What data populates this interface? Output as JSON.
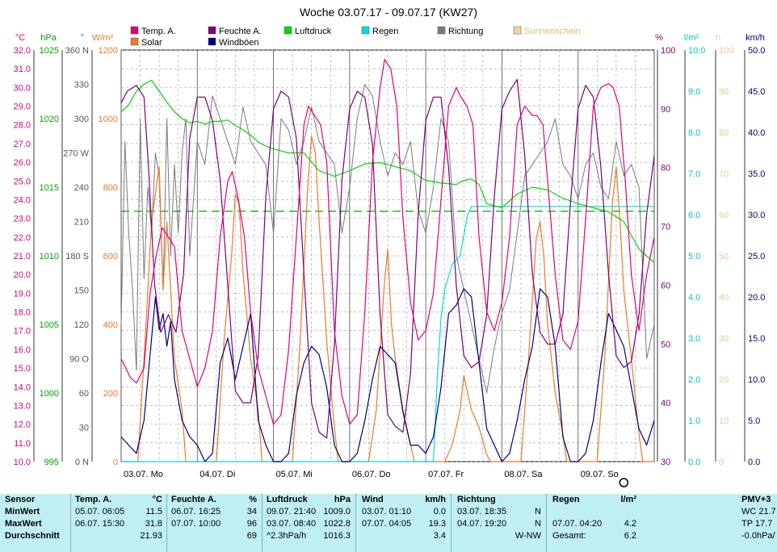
{
  "title": "Woche 03.07.17 - 09.07.17 (KW27)",
  "legend": [
    {
      "label": "Temp. A.",
      "color": "#e0007a",
      "key": "temp"
    },
    {
      "label": "Solar",
      "color": "#f07828",
      "key": "solar"
    },
    {
      "label": "Feuchte A.",
      "color": "#7a007a",
      "key": "humidity"
    },
    {
      "label": "Windböen",
      "color": "#00007a",
      "key": "gusts"
    },
    {
      "label": "Luftdruck",
      "color": "#00dd00",
      "key": "pressure"
    },
    {
      "label": "Regen",
      "color": "#00dddd",
      "key": "rain"
    },
    {
      "label": "Richtung",
      "color": "#7a7a7a",
      "key": "direction"
    },
    {
      "label": "Sonnenschein",
      "color": "#f5d2a0",
      "key": "sunshine"
    }
  ],
  "axes": {
    "temp": {
      "unit": "°C",
      "color": "#e0007a",
      "ticks": [
        "32.0",
        "31.0",
        "30.0",
        "29.0",
        "28.0",
        "27.0",
        "26.0",
        "25.0",
        "24.0",
        "23.0",
        "22.0",
        "21.0",
        "20.0",
        "19.0",
        "18.0",
        "17.0",
        "16.0",
        "15.0",
        "14.0",
        "13.0",
        "12.0",
        "11.0",
        "10.0"
      ]
    },
    "pressure": {
      "unit": "hPa",
      "color": "#00aa00",
      "ticks": [
        "1025",
        "1020",
        "1015",
        "1010",
        "1005",
        "1000",
        "995"
      ]
    },
    "direction": {
      "unit": "°",
      "color": "#555555",
      "ticks": [
        "360 N",
        "330",
        "300",
        "270 W",
        "240",
        "210",
        "180 S",
        "150",
        "120",
        "90 O",
        "60",
        "30",
        "0 N"
      ]
    },
    "solar": {
      "unit": "W/m²",
      "color": "#f07828",
      "ticks": [
        "1200",
        "1000",
        "800",
        "600",
        "400",
        "200",
        "0"
      ]
    },
    "humidity": {
      "unit": "%",
      "color": "#7a007a",
      "ticks": [
        "100",
        "90",
        "80",
        "70",
        "60",
        "50",
        "40",
        "30"
      ]
    },
    "rain": {
      "unit": "l/m²",
      "color": "#00c8c8",
      "ticks": [
        "10.0",
        "9.0",
        "8.0",
        "7.0",
        "6.0",
        "5.0",
        "4.0",
        "3.0",
        "2.0",
        "1.0",
        "0.0"
      ]
    },
    "sunshine": {
      "unit": "h",
      "color": "#f0c890",
      "ticks": [
        "100",
        "90",
        "80",
        "70",
        "60",
        "50",
        "40",
        "30",
        "20",
        "10",
        "0"
      ]
    },
    "wind": {
      "unit": "km/h",
      "color": "#00007a",
      "ticks": [
        "50.0",
        "45.0",
        "40.0",
        "35.0",
        "30.0",
        "25.0",
        "20.0",
        "15.0",
        "10.0",
        "5.0",
        "0.0"
      ]
    }
  },
  "x_labels": [
    "03.07. Mo",
    "04.07. Di",
    "05.07. Mi",
    "06.07. Do",
    "07.07. Fr",
    "08.07. Sa",
    "09.07. So"
  ],
  "chart_data": {
    "type": "line",
    "title": "Woche 03.07.17 - 09.07.17 (KW27)",
    "x_unit": "day",
    "x_range": [
      0,
      7
    ],
    "x_categories": [
      "03.07. Mo",
      "04.07. Di",
      "05.07. Mi",
      "06.07. Do",
      "07.07. Fr",
      "08.07. Sa",
      "09.07. So"
    ],
    "series": [
      {
        "name": "Temp. A.",
        "axis": "temp",
        "ylim": [
          10,
          32
        ],
        "x": [
          0,
          0.06,
          0.12,
          0.2,
          0.3,
          0.38,
          0.46,
          0.54,
          0.62,
          0.7,
          0.8,
          0.9,
          1.0,
          1.1,
          1.2,
          1.3,
          1.4,
          1.46,
          1.54,
          1.62,
          1.7,
          1.8,
          1.9,
          2.0,
          2.1,
          2.2,
          2.3,
          2.4,
          2.46,
          2.54,
          2.62,
          2.7,
          2.8,
          2.9,
          3.0,
          3.1,
          3.2,
          3.3,
          3.4,
          3.46,
          3.54,
          3.62,
          3.7,
          3.8,
          3.9,
          4.0,
          4.1,
          4.2,
          4.3,
          4.4,
          4.46,
          4.54,
          4.62,
          4.7,
          4.8,
          4.9,
          5.0,
          5.1,
          5.2,
          5.3,
          5.4,
          5.46,
          5.54,
          5.62,
          5.7,
          5.8,
          5.9,
          6.0,
          6.1,
          6.2,
          6.3,
          6.4,
          6.46,
          6.54,
          6.62,
          6.7,
          6.8,
          6.9,
          7.0
        ],
        "y": [
          15.5,
          15,
          14.5,
          14.2,
          15,
          19,
          21,
          22.5,
          22,
          21.5,
          17,
          15.5,
          14,
          15,
          17,
          22,
          25,
          25.5,
          24,
          22,
          18,
          15,
          13.5,
          12,
          12.5,
          16,
          22,
          28,
          29,
          28.5,
          28,
          26,
          17,
          13.5,
          12,
          12.5,
          18,
          26,
          30,
          31.5,
          31,
          29,
          23,
          18.5,
          16.5,
          17,
          19,
          24,
          29,
          30,
          29.5,
          29,
          28,
          22,
          18,
          17,
          18.5,
          22,
          28,
          29,
          28.5,
          28.5,
          28,
          24,
          20,
          16.5,
          16,
          17.5,
          23,
          29,
          30,
          30.2,
          30,
          29,
          25,
          20,
          17,
          20,
          22
        ]
      },
      {
        "name": "Feuchte A.",
        "axis": "humidity",
        "ylim": [
          30,
          100
        ],
        "x": [
          0,
          0.08,
          0.2,
          0.3,
          0.36,
          0.44,
          0.52,
          0.62,
          0.72,
          0.82,
          0.9,
          1.0,
          1.1,
          1.2,
          1.3,
          1.4,
          1.5,
          1.6,
          1.7,
          1.8,
          1.9,
          2.0,
          2.1,
          2.2,
          2.3,
          2.4,
          2.5,
          2.6,
          2.7,
          2.8,
          2.9,
          3.0,
          3.1,
          3.2,
          3.3,
          3.4,
          3.5,
          3.6,
          3.7,
          3.8,
          3.9,
          4.0,
          4.1,
          4.2,
          4.3,
          4.4,
          4.5,
          4.6,
          4.7,
          4.8,
          4.9,
          5.0,
          5.1,
          5.2,
          5.3,
          5.4,
          5.5,
          5.6,
          5.7,
          5.8,
          5.9,
          6.0,
          6.1,
          6.2,
          6.3,
          6.4,
          6.5,
          6.6,
          6.7,
          6.8,
          6.9,
          7.0
        ],
        "y": [
          91,
          93,
          94,
          92,
          80,
          60,
          52,
          55,
          52,
          62,
          85,
          92,
          92,
          88,
          78,
          60,
          42,
          40,
          40,
          48,
          75,
          90,
          93,
          92,
          85,
          62,
          40,
          35,
          34,
          50,
          78,
          90,
          93,
          92,
          84,
          55,
          38,
          36,
          35,
          45,
          72,
          88,
          92,
          92,
          80,
          60,
          48,
          46,
          47,
          55,
          75,
          90,
          93,
          95,
          82,
          62,
          52,
          50,
          50,
          55,
          74,
          90,
          94,
          92,
          80,
          62,
          48,
          46,
          47,
          55,
          72,
          82
        ]
      },
      {
        "name": "Luftdruck",
        "axis": "pressure",
        "ylim": [
          995,
          1025
        ],
        "x": [
          0,
          0.1,
          0.2,
          0.3,
          0.4,
          0.5,
          0.6,
          0.7,
          0.8,
          0.9,
          1.0,
          1.1,
          1.2,
          1.3,
          1.4,
          1.5,
          1.6,
          1.7,
          1.8,
          1.9,
          2.0,
          2.2,
          2.4,
          2.6,
          2.8,
          3.0,
          3.2,
          3.4,
          3.6,
          3.8,
          4.0,
          4.2,
          4.4,
          4.5,
          4.6,
          4.7,
          4.8,
          5.0,
          5.2,
          5.4,
          5.6,
          5.8,
          6.0,
          6.2,
          6.4,
          6.6,
          6.8,
          7.0
        ],
        "y": [
          1020.5,
          1021,
          1022,
          1022.5,
          1022.8,
          1022,
          1021.2,
          1020.5,
          1020,
          1019.7,
          1019.8,
          1019.6,
          1019.8,
          1019.8,
          1019.9,
          1019.5,
          1019.2,
          1018.8,
          1018.3,
          1018,
          1017.8,
          1017.5,
          1017.5,
          1016.2,
          1015.8,
          1016.2,
          1016.7,
          1016.8,
          1016.5,
          1016.2,
          1015.5,
          1015.3,
          1015.2,
          1015.5,
          1015.6,
          1015.2,
          1013.8,
          1013.5,
          1014.5,
          1015,
          1014.8,
          1014.2,
          1013.8,
          1013.5,
          1013.2,
          1012.5,
          1010.5,
          1009.5
        ]
      },
      {
        "name": "Regen",
        "axis": "rain",
        "ylim": [
          0,
          10
        ],
        "x": [
          0,
          4.0,
          4.1,
          4.15,
          4.2,
          4.25,
          4.3,
          4.35,
          4.45,
          4.5,
          4.55,
          4.6,
          7.0
        ],
        "y": [
          0,
          0,
          0,
          2.0,
          3.5,
          4.2,
          4.5,
          4.8,
          5.0,
          5.5,
          6.0,
          6.2,
          6.2
        ]
      },
      {
        "name": "Windböen",
        "axis": "wind",
        "ylim": [
          0,
          50
        ],
        "x": [
          0,
          0.1,
          0.2,
          0.3,
          0.4,
          0.45,
          0.5,
          0.55,
          0.6,
          0.65,
          0.7,
          0.8,
          0.9,
          1.0,
          1.1,
          1.2,
          1.3,
          1.4,
          1.5,
          1.6,
          1.7,
          1.8,
          1.9,
          2.0,
          2.1,
          2.2,
          2.3,
          2.4,
          2.5,
          2.6,
          2.7,
          2.8,
          2.9,
          3.0,
          3.1,
          3.2,
          3.3,
          3.4,
          3.5,
          3.6,
          3.7,
          3.8,
          3.9,
          4.0,
          4.1,
          4.2,
          4.3,
          4.4,
          4.5,
          4.6,
          4.7,
          4.8,
          4.9,
          5.0,
          5.1,
          5.2,
          5.3,
          5.4,
          5.5,
          5.6,
          5.7,
          5.8,
          5.9,
          6.0,
          6.1,
          6.2,
          6.3,
          6.4,
          6.5,
          6.6,
          6.7,
          6.8,
          6.9,
          7.0
        ],
        "y": [
          3,
          2,
          1,
          5,
          15,
          20,
          16,
          18,
          14,
          17,
          10,
          5,
          3,
          2,
          0,
          1,
          12,
          15,
          10,
          14,
          18,
          5,
          2,
          0,
          0,
          1,
          8,
          12,
          14,
          13,
          9,
          2,
          0,
          0,
          1,
          5,
          10,
          14,
          13,
          12,
          6,
          2,
          2,
          1,
          3,
          9,
          18,
          19,
          21,
          20,
          12,
          4,
          2,
          0,
          1,
          5,
          10,
          14,
          21,
          20,
          14,
          3,
          0,
          0,
          1,
          5,
          12,
          18,
          16,
          14,
          9,
          4,
          2,
          5
        ]
      },
      {
        "name": "Solar",
        "axis": "solar",
        "ylim": [
          0,
          1200
        ],
        "x": [
          0,
          0.22,
          0.3,
          0.4,
          0.5,
          0.55,
          0.6,
          0.7,
          0.8,
          0.85,
          1.0,
          1.25,
          1.35,
          1.45,
          1.5,
          1.55,
          1.6,
          1.7,
          1.8,
          1.85,
          2.0,
          2.25,
          2.35,
          2.45,
          2.5,
          2.55,
          2.6,
          2.7,
          2.8,
          2.85,
          3.0,
          3.25,
          3.35,
          3.45,
          3.5,
          3.55,
          3.6,
          3.7,
          3.8,
          3.85,
          4.0,
          4.25,
          4.35,
          4.45,
          4.5,
          4.55,
          4.6,
          4.7,
          4.8,
          4.85,
          5.0,
          5.25,
          5.35,
          5.45,
          5.5,
          5.55,
          5.6,
          5.7,
          5.8,
          5.85,
          6.0,
          6.25,
          6.35,
          6.45,
          6.5,
          6.55,
          6.6,
          6.7,
          6.8,
          6.85,
          7.0
        ],
        "y": [
          0,
          0,
          300,
          700,
          860,
          500,
          700,
          300,
          150,
          0,
          0,
          0,
          350,
          600,
          780,
          750,
          550,
          300,
          150,
          0,
          0,
          0,
          350,
          800,
          950,
          900,
          700,
          350,
          100,
          0,
          0,
          0,
          150,
          500,
          620,
          400,
          300,
          150,
          50,
          0,
          0,
          0,
          50,
          150,
          250,
          200,
          150,
          100,
          20,
          0,
          0,
          0,
          300,
          650,
          700,
          600,
          400,
          200,
          80,
          0,
          0,
          0,
          300,
          750,
          860,
          700,
          500,
          300,
          80,
          0,
          0
        ]
      },
      {
        "name": "Richtung",
        "axis": "direction",
        "ylim": [
          0,
          360
        ],
        "x": [
          0,
          0.05,
          0.1,
          0.15,
          0.2,
          0.25,
          0.3,
          0.35,
          0.4,
          0.45,
          0.5,
          0.55,
          0.6,
          0.65,
          0.7,
          0.75,
          0.8,
          0.85,
          0.9,
          1.0,
          1.1,
          1.2,
          1.3,
          1.4,
          1.5,
          1.6,
          1.7,
          1.8,
          1.9,
          2.0,
          2.1,
          2.2,
          2.3,
          2.4,
          2.5,
          2.6,
          2.7,
          2.8,
          2.9,
          3.0,
          3.1,
          3.2,
          3.3,
          3.4,
          3.5,
          3.6,
          3.7,
          3.8,
          3.9,
          4.0,
          4.1,
          4.2,
          4.3,
          4.4,
          4.5,
          4.6,
          4.7,
          4.8,
          4.9,
          5.0,
          5.1,
          5.2,
          5.3,
          5.4,
          5.5,
          5.6,
          5.7,
          5.8,
          5.9,
          6.0,
          6.1,
          6.2,
          6.3,
          6.4,
          6.5,
          6.6,
          6.7,
          6.8,
          6.9,
          7.0
        ],
        "y": [
          120,
          280,
          200,
          150,
          80,
          300,
          160,
          240,
          200,
          270,
          250,
          150,
          300,
          180,
          260,
          200,
          270,
          300,
          180,
          280,
          260,
          320,
          300,
          280,
          260,
          310,
          280,
          270,
          260,
          200,
          300,
          290,
          260,
          280,
          310,
          280,
          270,
          260,
          200,
          240,
          300,
          330,
          320,
          280,
          250,
          270,
          260,
          280,
          220,
          200,
          240,
          300,
          280,
          180,
          150,
          120,
          90,
          60,
          100,
          130,
          150,
          200,
          250,
          260,
          270,
          280,
          300,
          260,
          250,
          230,
          260,
          270,
          240,
          230,
          280,
          250,
          260,
          240,
          90,
          120
        ]
      }
    ],
    "reference_line": {
      "axis": "pressure",
      "value": 1013.25,
      "style": "dashed",
      "color": "#00aa00"
    },
    "marker": {
      "x": 6.6,
      "symbol": "circle"
    }
  },
  "stats": {
    "sensor": {
      "header": "Sensor",
      "rows": [
        "MinWert",
        "MaxWert",
        "Durchschnitt"
      ]
    },
    "temp": {
      "header": "Temp. A.",
      "unit": "°C",
      "rows": [
        [
          "05.07.  06:05",
          "11.5"
        ],
        [
          "06.07.  15:30",
          "31.8"
        ],
        [
          "",
          "21.93"
        ]
      ]
    },
    "humidity": {
      "header": "Feuchte A.",
      "unit": "%",
      "rows": [
        [
          "06.07.  16:25",
          "34"
        ],
        [
          "07.07.  10:00",
          "96"
        ],
        [
          "",
          "69"
        ]
      ]
    },
    "pressure": {
      "header": "Luftdruck",
      "unit": "hPa",
      "rows": [
        [
          "09.07.  21:40",
          "1009.0"
        ],
        [
          "03.07.  08:40",
          "1022.8"
        ],
        [
          "^2.3hPa/h",
          "1016.3"
        ]
      ]
    },
    "wind": {
      "header": "Wind",
      "unit": "km/h",
      "rows": [
        [
          "03.07.  01:10",
          "0.0"
        ],
        [
          "07.07.  04:05",
          "19.3"
        ],
        [
          "",
          "3.4"
        ]
      ]
    },
    "direction": {
      "header": "Richtung",
      "unit": "",
      "rows": [
        [
          "03.07.  18:35",
          "N"
        ],
        [
          "04.07.  19:20",
          "N"
        ],
        [
          "",
          "W-NW"
        ]
      ]
    },
    "rain": {
      "header": "Regen",
      "unit": "l/m²",
      "rows": [
        [
          "",
          ""
        ],
        [
          "07.07.  04:20",
          "4.2"
        ],
        [
          "Gesamt:",
          "6.2"
        ]
      ]
    },
    "pmv": {
      "header": "PMV+3",
      "rows": [
        "WC 21.7",
        "TP 17.7",
        "-0.0hPa/"
      ]
    }
  }
}
